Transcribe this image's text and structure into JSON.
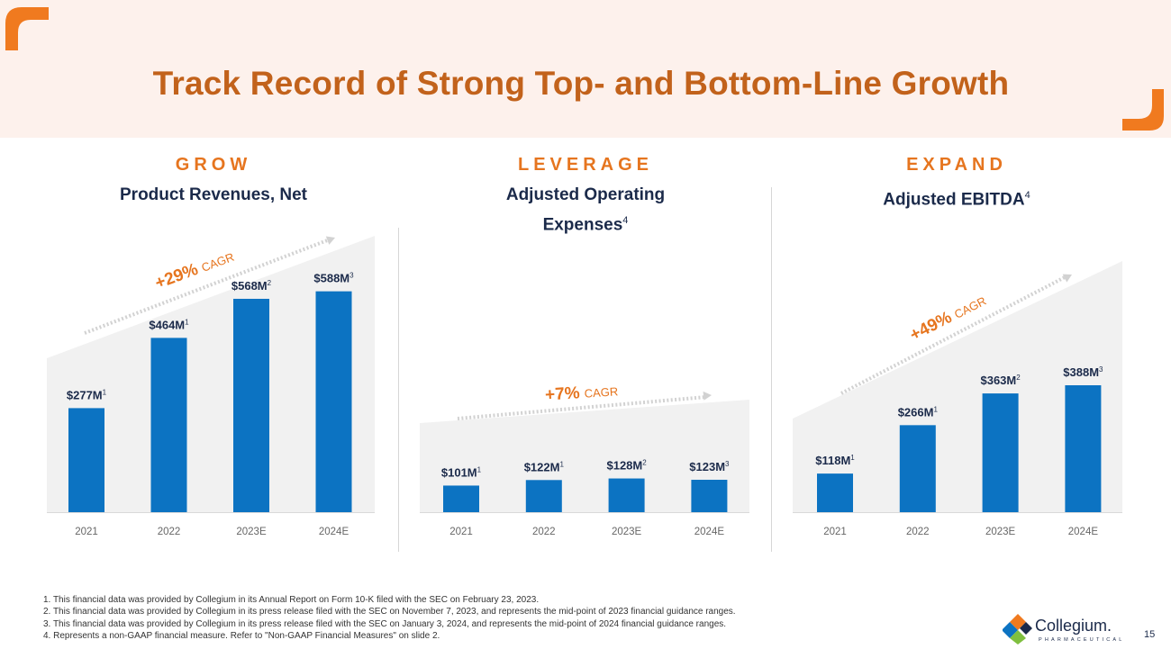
{
  "title": "Track Record of Strong Top- and Bottom-Line Growth",
  "colors": {
    "bar": "#0c73c2",
    "accent": "#e6751f",
    "title": "#c2621b",
    "navy": "#1b2a4a",
    "band": "#fdf1ec"
  },
  "sections": [
    {
      "label": "GROW",
      "title": "Product Revenues, Net",
      "title_sup": ""
    },
    {
      "label": "LEVERAGE",
      "title_line1": "Adjusted Operating",
      "title_line2": "Expenses",
      "title_sup": "4"
    },
    {
      "label": "EXPAND",
      "title": "Adjusted EBITDA",
      "title_sup": "4"
    }
  ],
  "chart_data": [
    {
      "type": "bar",
      "title": "Product Revenues, Net",
      "categories": [
        "2021",
        "2022",
        "2023E",
        "2024E"
      ],
      "values": [
        277,
        464,
        568,
        588
      ],
      "labels": [
        "$277M",
        "$464M",
        "$568M",
        "$588M"
      ],
      "footnote_refs": [
        "1",
        "1",
        "2",
        "3"
      ],
      "unit": "$M",
      "cagr": {
        "value": "+29%",
        "text": "CAGR"
      }
    },
    {
      "type": "bar",
      "title": "Adjusted Operating Expenses",
      "categories": [
        "2021",
        "2022",
        "2023E",
        "2024E"
      ],
      "values": [
        101,
        122,
        128,
        123
      ],
      "labels": [
        "$101M",
        "$122M",
        "$128M",
        "$123M"
      ],
      "footnote_refs": [
        "1",
        "1",
        "2",
        "3"
      ],
      "unit": "$M",
      "cagr": {
        "value": "+7%",
        "text": "CAGR"
      }
    },
    {
      "type": "bar",
      "title": "Adjusted EBITDA",
      "categories": [
        "2021",
        "2022",
        "2023E",
        "2024E"
      ],
      "values": [
        118,
        266,
        363,
        388
      ],
      "labels": [
        "$118M",
        "$266M",
        "$363M",
        "$388M"
      ],
      "footnote_refs": [
        "1",
        "1",
        "2",
        "3"
      ],
      "unit": "$M",
      "cagr": {
        "value": "+49%",
        "text": "CAGR"
      }
    }
  ],
  "footnotes": [
    "1. This financial data was provided by Collegium in its Annual Report on Form 10-K filed with the SEC on February 23, 2023.",
    "2. This financial data was provided by Collegium in its press release filed with the SEC on November 7, 2023, and represents the mid-point of 2023 financial guidance ranges.",
    "3. This financial data was provided by Collegium in its press release filed with the SEC on January 3, 2024, and represents the mid-point of 2024 financial guidance ranges.",
    "4. Represents a non-GAAP financial measure. Refer to \"Non-GAAP Financial Measures\" on slide 2."
  ],
  "logo": {
    "name": "Collegium.",
    "sub": "PHARMACEUTICAL"
  },
  "page_number": "15"
}
